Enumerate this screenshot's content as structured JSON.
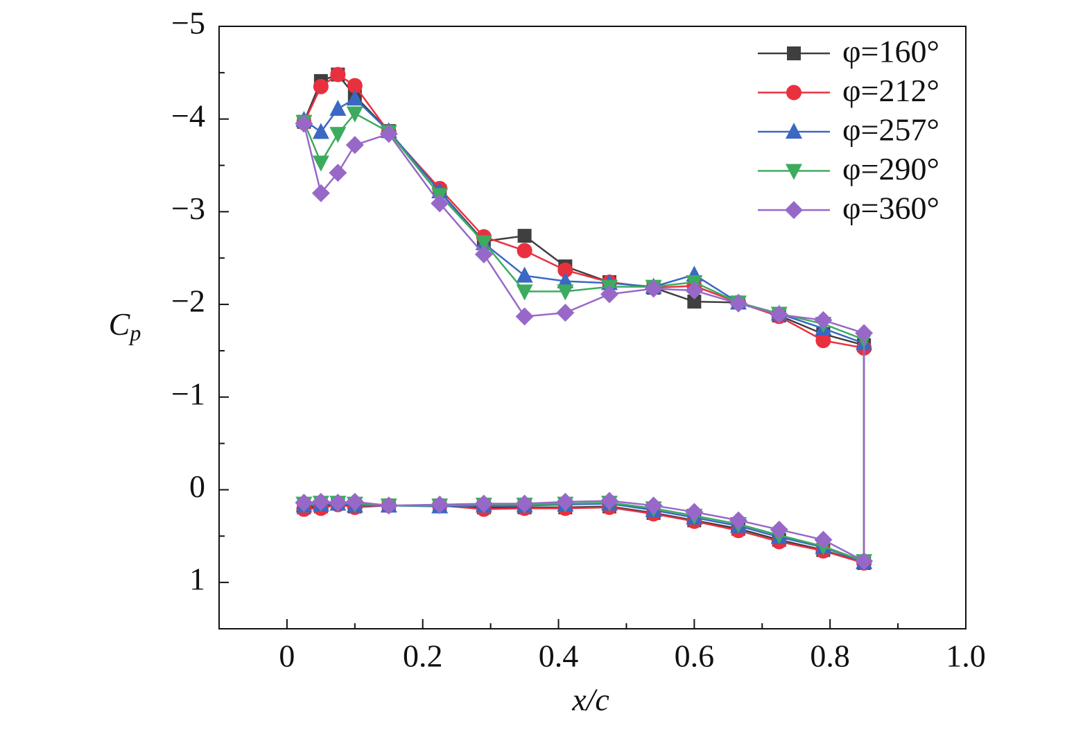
{
  "chart_data": {
    "type": "line",
    "xlabel": "x/c",
    "ylabel": {
      "main": "C",
      "sub": "p"
    },
    "xlim": [
      -0.1,
      1.0
    ],
    "xticks": [
      0,
      0.2,
      0.4,
      0.6,
      0.8,
      {
        "value": 1.0,
        "label": "1.0"
      }
    ],
    "xminorticks": [
      0.1,
      0.3,
      0.5,
      0.7,
      0.9
    ],
    "ylim": [
      -5,
      1.5
    ],
    "y_inverted": true,
    "yticks": [
      {
        "value": -5,
        "label": "−5"
      },
      {
        "value": -4,
        "label": "−4"
      },
      {
        "value": -3,
        "label": "−3"
      },
      {
        "value": -2,
        "label": "−2"
      },
      {
        "value": -1,
        "label": "−1"
      },
      0,
      1
    ],
    "yminorticks": [
      -4.5,
      -3.5,
      -2.5,
      -1.5,
      -0.5,
      0.5
    ],
    "legend": "top-right",
    "x": [
      0.025,
      0.05,
      0.075,
      0.1,
      0.15,
      0.225,
      0.29,
      0.35,
      0.41,
      0.475,
      0.54,
      0.6,
      0.665,
      0.725,
      0.79,
      0.85,
      0.85,
      0.79,
      0.725,
      0.665,
      0.6,
      0.54,
      0.475,
      0.41,
      0.35,
      0.29,
      0.225,
      0.15,
      0.1,
      0.075,
      0.05,
      0.025
    ],
    "series": [
      {
        "name": "φ=160°",
        "color": "#3f3f3f",
        "marker": "square",
        "values": [
          -3.97,
          -4.41,
          -4.48,
          -4.25,
          -3.87,
          -3.22,
          -2.68,
          -2.74,
          -2.41,
          -2.24,
          -2.18,
          -2.03,
          -2.02,
          -1.88,
          -1.68,
          -1.56,
          0.79,
          0.65,
          0.54,
          0.42,
          0.33,
          0.25,
          0.18,
          0.19,
          0.19,
          0.19,
          0.17,
          0.17,
          0.18,
          0.15,
          0.18,
          0.19
        ]
      },
      {
        "name": "φ=212°",
        "color": "#e8303f",
        "marker": "circle",
        "values": [
          -3.96,
          -4.35,
          -4.48,
          -4.36,
          -3.86,
          -3.25,
          -2.73,
          -2.58,
          -2.37,
          -2.24,
          -2.18,
          -2.2,
          -2.02,
          -1.87,
          -1.61,
          -1.53,
          0.79,
          0.66,
          0.56,
          0.44,
          0.34,
          0.26,
          0.19,
          0.2,
          0.2,
          0.21,
          0.17,
          0.17,
          0.19,
          0.16,
          0.2,
          0.21
        ]
      },
      {
        "name": "φ=257°",
        "color": "#3a68c2",
        "marker": "triangle-up",
        "values": [
          -3.99,
          -3.86,
          -4.11,
          -4.22,
          -3.87,
          -3.22,
          -2.66,
          -2.31,
          -2.25,
          -2.23,
          -2.19,
          -2.32,
          -2.02,
          -1.9,
          -1.74,
          -1.58,
          0.78,
          0.62,
          0.51,
          0.39,
          0.3,
          0.22,
          0.15,
          0.16,
          0.17,
          0.17,
          0.18,
          0.17,
          0.17,
          0.15,
          0.16,
          0.17
        ]
      },
      {
        "name": "φ=290°",
        "color": "#3dab5f",
        "marker": "triangle-down",
        "values": [
          -3.97,
          -3.53,
          -3.84,
          -4.06,
          -3.86,
          -3.18,
          -2.67,
          -2.14,
          -2.14,
          -2.19,
          -2.19,
          -2.24,
          -2.02,
          -1.9,
          -1.79,
          -1.62,
          0.77,
          0.61,
          0.49,
          0.37,
          0.28,
          0.2,
          0.14,
          0.15,
          0.16,
          0.16,
          0.17,
          0.17,
          0.15,
          0.14,
          0.14,
          0.15
        ]
      },
      {
        "name": "φ=360°",
        "color": "#9868c8",
        "marker": "diamond",
        "values": [
          -3.95,
          -3.2,
          -3.42,
          -3.72,
          -3.84,
          -3.09,
          -2.54,
          -1.87,
          -1.91,
          -2.11,
          -2.17,
          -2.15,
          -2.01,
          -1.89,
          -1.83,
          -1.69,
          0.77,
          0.54,
          0.43,
          0.33,
          0.24,
          0.17,
          0.12,
          0.13,
          0.15,
          0.15,
          0.16,
          0.17,
          0.13,
          0.14,
          0.13,
          0.14
        ]
      }
    ]
  }
}
